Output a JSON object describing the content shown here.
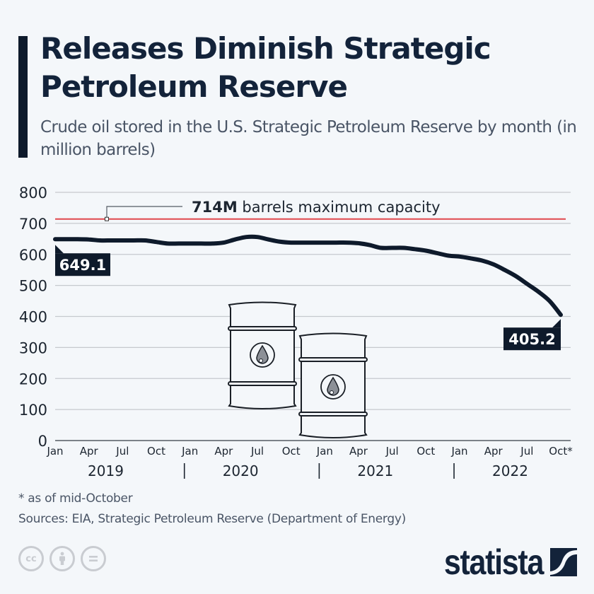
{
  "header": {
    "title": "Releases Diminish Strategic Petroleum Reserve",
    "subtitle": "Crude oil stored in the U.S. Strategic Petroleum Reserve by month (in million barrels)"
  },
  "chart_data": {
    "type": "line",
    "title": "Releases Diminish Strategic Petroleum Reserve",
    "subtitle": "Crude oil stored in the U.S. Strategic Petroleum Reserve by month (in million barrels)",
    "xlabel": "",
    "ylabel": "million barrels",
    "ylim": [
      0,
      800
    ],
    "yticks": [
      0,
      100,
      200,
      300,
      400,
      500,
      600,
      700,
      800
    ],
    "grid": true,
    "x_tick_labels": [
      "Jan",
      "Apr",
      "Jul",
      "Oct",
      "Jan",
      "Apr",
      "Jul",
      "Oct",
      "Jan",
      "Apr",
      "Jul",
      "Oct",
      "Jan",
      "Apr",
      "Jul",
      "Oct*"
    ],
    "year_labels": [
      "2019",
      "2020",
      "2021",
      "2022"
    ],
    "series": [
      {
        "name": "Crude oil stored",
        "color": "#0e1a2b",
        "x": [
          "2019-01",
          "2019-02",
          "2019-03",
          "2019-04",
          "2019-05",
          "2019-06",
          "2019-07",
          "2019-08",
          "2019-09",
          "2019-10",
          "2019-11",
          "2019-12",
          "2020-01",
          "2020-02",
          "2020-03",
          "2020-04",
          "2020-05",
          "2020-06",
          "2020-07",
          "2020-08",
          "2020-09",
          "2020-10",
          "2020-11",
          "2020-12",
          "2021-01",
          "2021-02",
          "2021-03",
          "2021-04",
          "2021-05",
          "2021-06",
          "2021-07",
          "2021-08",
          "2021-09",
          "2021-10",
          "2021-11",
          "2021-12",
          "2022-01",
          "2022-02",
          "2022-03",
          "2022-04",
          "2022-05",
          "2022-06",
          "2022-07",
          "2022-08",
          "2022-09",
          "2022-10"
        ],
        "values": [
          649.1,
          649,
          649,
          648,
          645,
          645,
          645,
          645,
          645,
          640,
          635,
          635,
          635,
          635,
          635,
          638,
          648,
          656,
          656,
          648,
          641,
          638,
          638,
          638,
          638,
          638,
          638,
          636,
          630,
          621,
          621,
          621,
          617,
          612,
          604,
          596,
          593,
          587,
          580,
          568,
          550,
          530,
          505,
          480,
          450,
          405.2
        ]
      }
    ],
    "reference_line": {
      "value": 714,
      "label_bold": "714M",
      "label_rest": " barrels maximum capacity",
      "color": "#e0474c"
    },
    "data_labels": [
      {
        "x": "2019-01",
        "value": 649.1,
        "text": "649.1"
      },
      {
        "x": "2022-10",
        "value": 405.2,
        "text": "405.2"
      }
    ]
  },
  "footer": {
    "note": "* as of mid-October",
    "source": "Sources: EIA, Strategic Petroleum Reserve (Department of Energy)",
    "license_icons": [
      "cc-icon",
      "attribution-icon",
      "no-derivatives-icon"
    ],
    "brand": "statista"
  }
}
